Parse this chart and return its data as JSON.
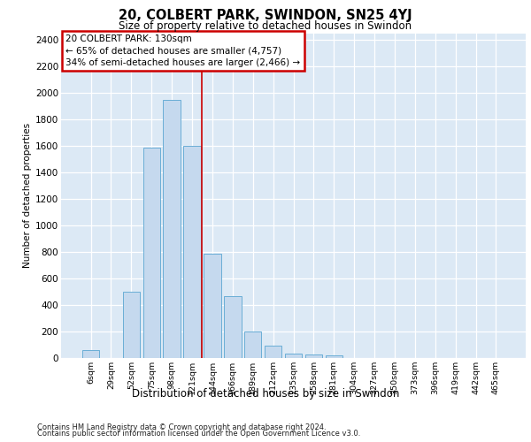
{
  "title_line1": "20, COLBERT PARK, SWINDON, SN25 4YJ",
  "title_line2": "Size of property relative to detached houses in Swindon",
  "xlabel": "Distribution of detached houses by size in Swindon",
  "ylabel": "Number of detached properties",
  "categories": [
    "6sqm",
    "29sqm",
    "52sqm",
    "75sqm",
    "98sqm",
    "121sqm",
    "144sqm",
    "166sqm",
    "189sqm",
    "212sqm",
    "235sqm",
    "258sqm",
    "281sqm",
    "304sqm",
    "327sqm",
    "350sqm",
    "373sqm",
    "396sqm",
    "419sqm",
    "442sqm",
    "465sqm"
  ],
  "values": [
    60,
    0,
    500,
    1590,
    1950,
    1600,
    790,
    470,
    200,
    95,
    35,
    30,
    22,
    0,
    0,
    0,
    0,
    0,
    0,
    0,
    0
  ],
  "bar_color": "#c5d9ee",
  "bar_edge_color": "#6aaed6",
  "annotation_text": "20 COLBERT PARK: 130sqm\n← 65% of detached houses are smaller (4,757)\n34% of semi-detached houses are larger (2,466) →",
  "vline_x": 5.5,
  "vline_color": "#cc0000",
  "annotation_box_edgecolor": "#cc0000",
  "ylim_max": 2450,
  "yticks": [
    0,
    200,
    400,
    600,
    800,
    1000,
    1200,
    1400,
    1600,
    1800,
    2000,
    2200,
    2400
  ],
  "plot_bg_color": "#dce9f5",
  "grid_color": "#ffffff",
  "footer_line1": "Contains HM Land Registry data © Crown copyright and database right 2024.",
  "footer_line2": "Contains public sector information licensed under the Open Government Licence v3.0."
}
